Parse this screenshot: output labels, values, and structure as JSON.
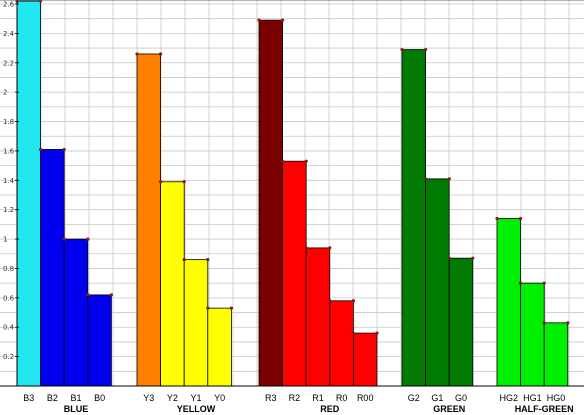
{
  "chart_data": {
    "type": "bar",
    "title": "",
    "xlabel": "",
    "ylabel": "",
    "ylim": [
      0,
      2.6
    ],
    "yticks": [
      0.2,
      0.4,
      0.6,
      0.8,
      1,
      1.2,
      1.4,
      1.6,
      1.8,
      2,
      2.2,
      2.4,
      2.6
    ],
    "grid": true,
    "legend": "none",
    "bar_outline_color": "#000000",
    "vertex_marker_color": "#8b1a1a",
    "groups": [
      {
        "name": "BLUE",
        "categories": [
          "B3",
          "B2",
          "B1",
          "B0"
        ],
        "values": [
          2.62,
          1.61,
          1.0,
          0.62
        ],
        "colors": [
          "#22e6f0",
          "#0000ee",
          "#0000ee",
          "#0000ee"
        ]
      },
      {
        "name": "YELLOW",
        "categories": [
          "Y3",
          "Y2",
          "Y1",
          "Y0"
        ],
        "values": [
          2.26,
          1.39,
          0.86,
          0.53
        ],
        "colors": [
          "#ff8000",
          "#ffff00",
          "#ffff00",
          "#ffff00"
        ]
      },
      {
        "name": "RED",
        "categories": [
          "R3",
          "R2",
          "R1",
          "R0",
          "R00"
        ],
        "values": [
          2.49,
          1.53,
          0.94,
          0.58,
          0.36
        ],
        "colors": [
          "#7a0000",
          "#ff0000",
          "#ff0000",
          "#ff0000",
          "#ff0000"
        ]
      },
      {
        "name": "GREEN",
        "categories": [
          "G2",
          "G1",
          "G0"
        ],
        "values": [
          2.29,
          1.41,
          0.87
        ],
        "colors": [
          "#007a00",
          "#007a00",
          "#007a00"
        ]
      },
      {
        "name": "HALF-GREEN",
        "categories": [
          "HG2",
          "HG1",
          "HG0"
        ],
        "values": [
          1.14,
          0.7,
          0.43
        ],
        "colors": [
          "#00ee00",
          "#00ee00",
          "#00ee00"
        ]
      }
    ]
  }
}
